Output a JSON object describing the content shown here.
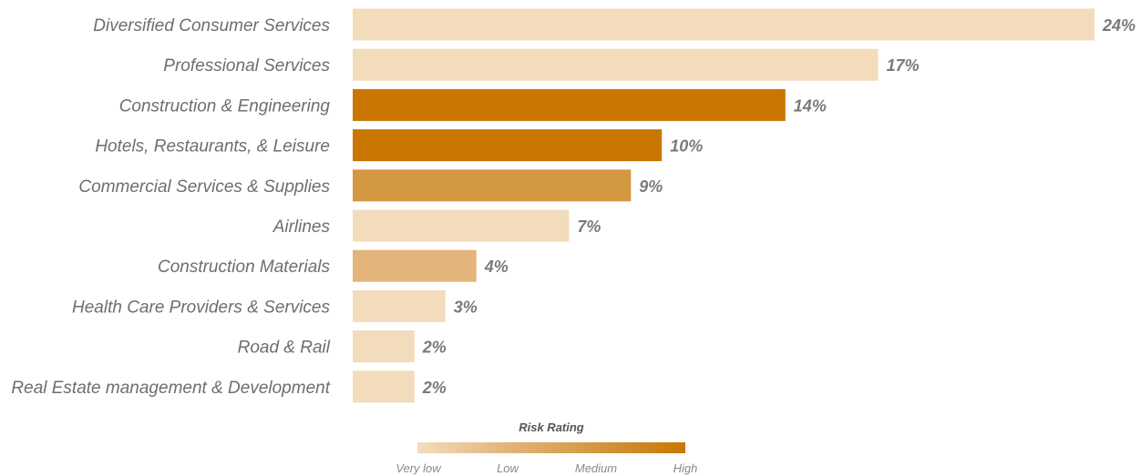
{
  "chart_data": {
    "type": "bar",
    "orientation": "horizontal",
    "categories": [
      "Diversified Consumer Services",
      "Professional Services",
      "Construction & Engineering",
      "Hotels, Restaurants, & Leisure",
      "Commercial Services & Supplies",
      "Airlines",
      "Construction Materials",
      "Health Care Providers & Services",
      "Road & Rail",
      "Real Estate management & Development"
    ],
    "values": [
      24,
      17,
      14,
      10,
      9,
      7,
      4,
      3,
      2,
      2
    ],
    "value_labels": [
      "24%",
      "17%",
      "14%",
      "10%",
      "9%",
      "7%",
      "4%",
      "3%",
      "2%",
      "2%"
    ],
    "risk_ratings": [
      "Very low",
      "Very low",
      "High",
      "High",
      "Medium",
      "Very low",
      "Low",
      "Very low",
      "Very low",
      "Very low"
    ],
    "xlim": [
      0,
      24
    ],
    "grid": false,
    "legend": {
      "title": "Risk Rating",
      "placement": "bottom-center",
      "labels": [
        "Very low",
        "Low",
        "Medium",
        "High"
      ]
    },
    "colors": {
      "very_low": "#f3dcbc",
      "low": "#e3b57a",
      "medium": "#d49843",
      "high": "#c97603"
    }
  }
}
